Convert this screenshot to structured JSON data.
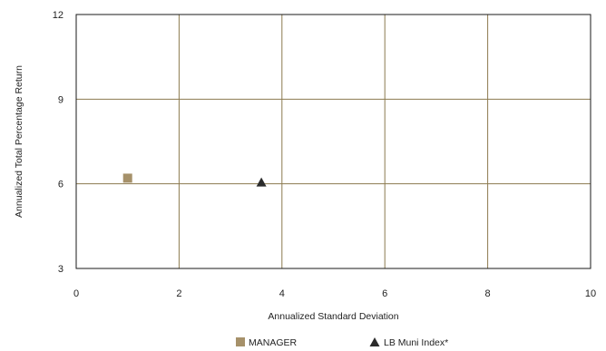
{
  "chart_data": {
    "type": "scatter",
    "xlabel": "Annualized Standard Deviation",
    "ylabel": "Annualized Total Percentage Return",
    "xlim": [
      0,
      10
    ],
    "ylim": [
      3,
      12
    ],
    "xticks": [
      0,
      2,
      4,
      6,
      8,
      10
    ],
    "yticks": [
      3,
      6,
      9,
      12
    ],
    "grid": true,
    "legend_position": "bottom",
    "series": [
      {
        "name": "MANAGER",
        "marker": "square",
        "color": "#a6916a",
        "points": [
          {
            "x": 1.0,
            "y": 6.2
          }
        ]
      },
      {
        "name": "LB Muni Index*",
        "marker": "triangle",
        "color": "#2b2b2b",
        "points": [
          {
            "x": 3.6,
            "y": 6.05
          }
        ]
      }
    ],
    "colors": {
      "grid": "#8c7a4f",
      "frame": "#1a1a1a"
    }
  }
}
